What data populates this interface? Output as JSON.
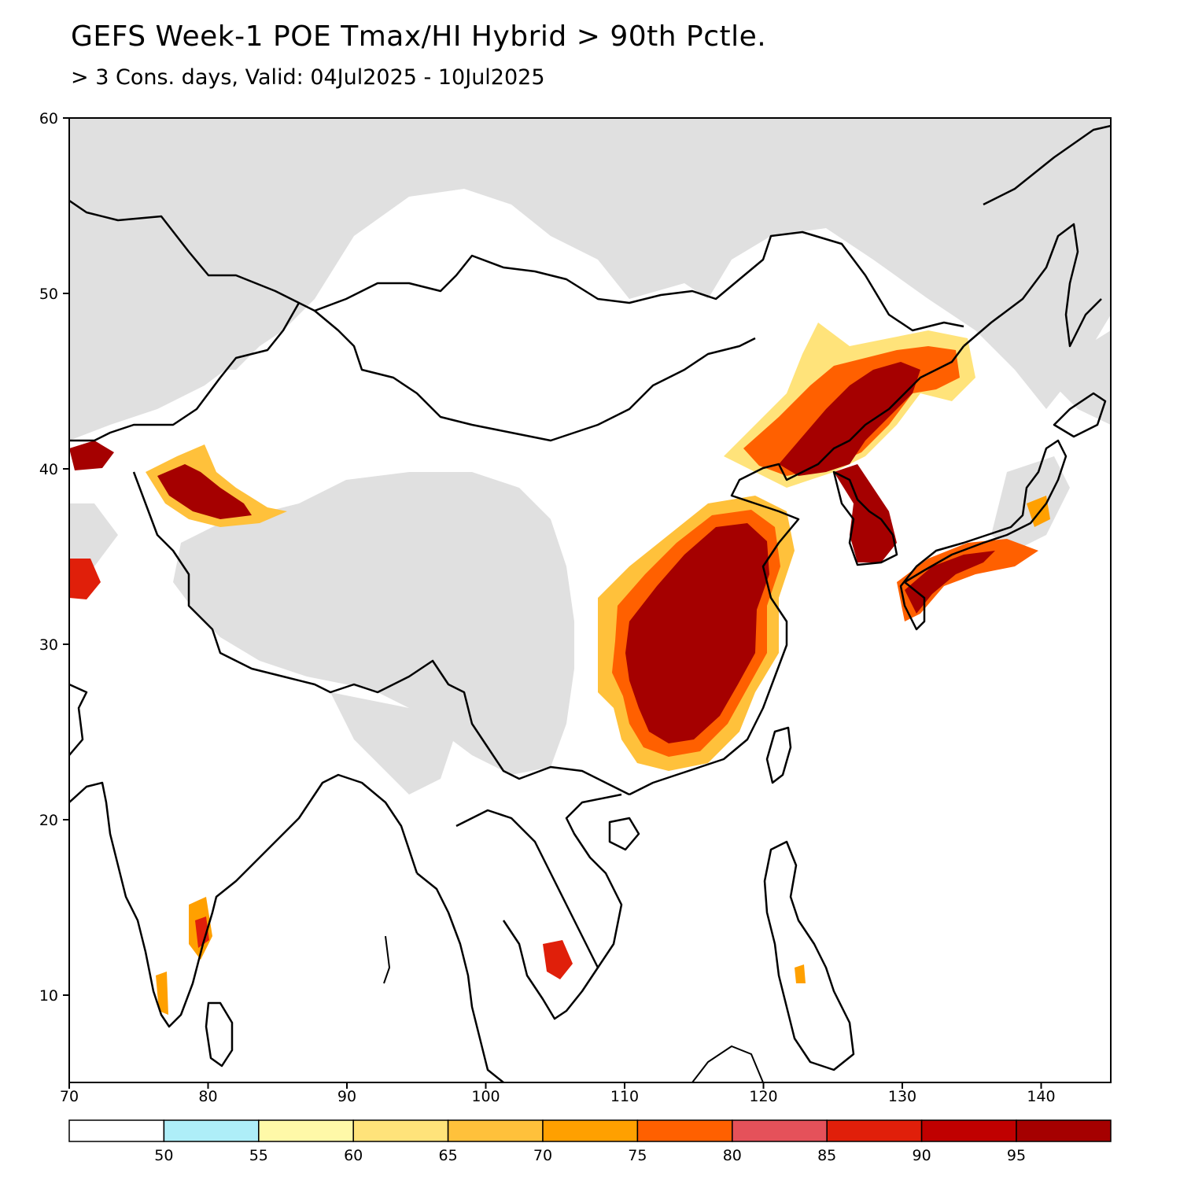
{
  "title": "GEFS Week-1 POE Tmax/HI Hybrid > 90th Pctle.",
  "subtitle": "> 3 Cons. days, Valid: 04Jul2025 - 10Jul2025",
  "map": {
    "lon_range": [
      70,
      145
    ],
    "lat_range": [
      5,
      60
    ],
    "lon_ticks": [
      "70",
      "80",
      "90",
      "100",
      "110",
      "120",
      "130",
      "140"
    ],
    "lat_ticks": [
      "60",
      "50",
      "40",
      "30",
      "20",
      "10"
    ],
    "land_mask_color": "#e0e0e0",
    "boundary_color": "#000000",
    "regions_high_probability": [
      "Eastern China",
      "Northeast China",
      "Korean Peninsula",
      "Western Japan",
      "Tarim Basin",
      "Southern India",
      "Cambodia"
    ]
  },
  "colorbar": {
    "labels": [
      "50",
      "55",
      "60",
      "65",
      "70",
      "75",
      "80",
      "85",
      "90",
      "95"
    ],
    "colors": [
      "#ffffff",
      "#aeeef8",
      "#fff9a8",
      "#ffe37a",
      "#ffc13b",
      "#ffa000",
      "#ff6000",
      "#e5515a",
      "#e01f0a",
      "#c00000",
      "#a50000"
    ]
  }
}
